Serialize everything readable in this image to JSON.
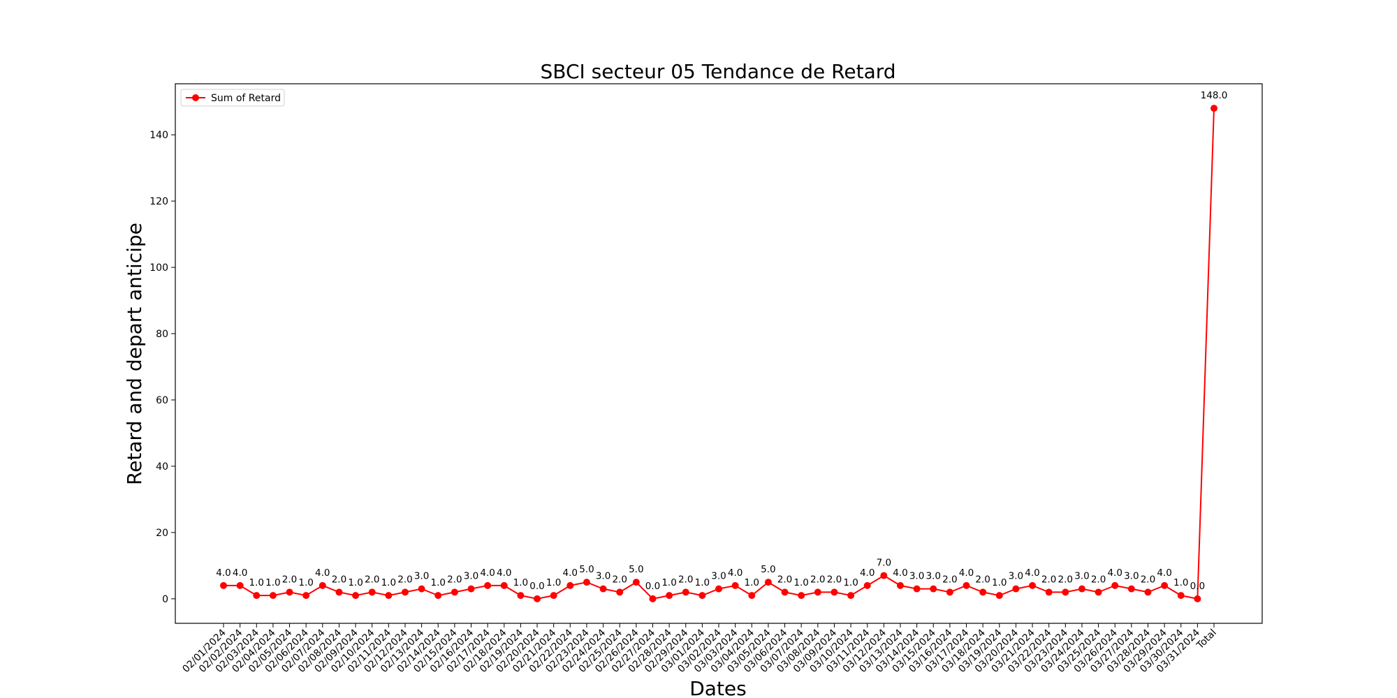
{
  "chart_data": {
    "type": "line",
    "title": "SBCI secteur 05 Tendance de Retard",
    "xlabel": "Dates",
    "ylabel": "Retard and depart anticipe",
    "ylim": [
      -7.4,
      155.4
    ],
    "yticks": [
      0,
      20,
      40,
      60,
      80,
      100,
      120,
      140
    ],
    "grid": false,
    "legend": "top-left",
    "colors": {
      "series": "#ff0000",
      "axis": "#000000"
    },
    "categories": [
      "02/01/2024",
      "02/02/2024",
      "02/03/2024",
      "02/04/2024",
      "02/05/2024",
      "02/06/2024",
      "02/07/2024",
      "02/08/2024",
      "02/09/2024",
      "02/10/2024",
      "02/11/2024",
      "02/12/2024",
      "02/13/2024",
      "02/14/2024",
      "02/15/2024",
      "02/16/2024",
      "02/17/2024",
      "02/18/2024",
      "02/19/2024",
      "02/20/2024",
      "02/21/2024",
      "02/22/2024",
      "02/23/2024",
      "02/24/2024",
      "02/25/2024",
      "02/26/2024",
      "02/27/2024",
      "02/28/2024",
      "02/29/2024",
      "03/01/2024",
      "03/02/2024",
      "03/03/2024",
      "03/04/2024",
      "03/05/2024",
      "03/06/2024",
      "03/07/2024",
      "03/08/2024",
      "03/09/2024",
      "03/10/2024",
      "03/11/2024",
      "03/12/2024",
      "03/13/2024",
      "03/14/2024",
      "03/15/2024",
      "03/16/2024",
      "03/17/2024",
      "03/18/2024",
      "03/19/2024",
      "03/20/2024",
      "03/21/2024",
      "03/22/2024",
      "03/23/2024",
      "03/24/2024",
      "03/25/2024",
      "03/26/2024",
      "03/27/2024",
      "03/28/2024",
      "03/29/2024",
      "03/30/2024",
      "03/31/2024",
      "Total"
    ],
    "series": [
      {
        "name": "Sum of Retard",
        "values": [
          4.0,
          4.0,
          1.0,
          1.0,
          2.0,
          1.0,
          4.0,
          2.0,
          1.0,
          2.0,
          1.0,
          2.0,
          3.0,
          1.0,
          2.0,
          3.0,
          4.0,
          4.0,
          1.0,
          0.0,
          1.0,
          4.0,
          5.0,
          3.0,
          2.0,
          5.0,
          0.0,
          1.0,
          2.0,
          1.0,
          3.0,
          4.0,
          1.0,
          5.0,
          2.0,
          1.0,
          2.0,
          2.0,
          1.0,
          4.0,
          7.0,
          4.0,
          3.0,
          3.0,
          2.0,
          4.0,
          2.0,
          1.0,
          3.0,
          4.0,
          2.0,
          2.0,
          3.0,
          2.0,
          4.0,
          3.0,
          2.0,
          4.0,
          1.0,
          0.0,
          148.0
        ]
      }
    ]
  }
}
